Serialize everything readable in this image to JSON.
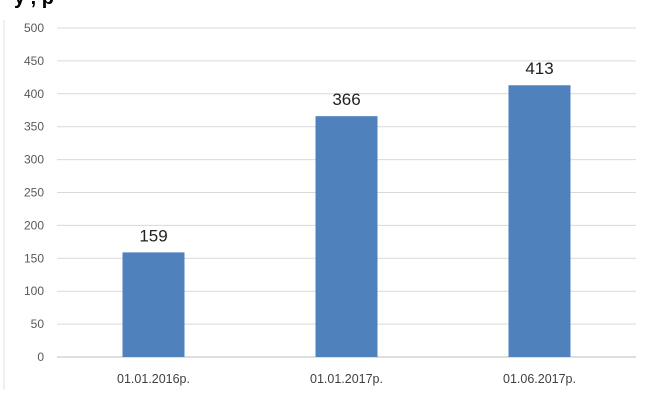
{
  "header": {
    "clipped_title_fragment": "у , р  "
  },
  "chart_data": {
    "type": "bar",
    "categories": [
      "01.01.2016р.",
      "01.01.2017р.",
      "01.06.2017р."
    ],
    "series": [
      {
        "values": [
          159,
          366,
          413
        ],
        "color": "#4f81bd"
      }
    ],
    "data_labels": [
      "159",
      "366",
      "413"
    ],
    "title": "",
    "xlabel": "",
    "ylabel": "",
    "ylim": [
      0,
      500
    ],
    "y_ticks": [
      "0",
      "50",
      "100",
      "150",
      "200",
      "250",
      "300",
      "350",
      "400",
      "450",
      "500"
    ],
    "grid": true,
    "legend": "none",
    "gridline_color": "#d9d9d9",
    "axis_color": "#bfbfbf"
  }
}
